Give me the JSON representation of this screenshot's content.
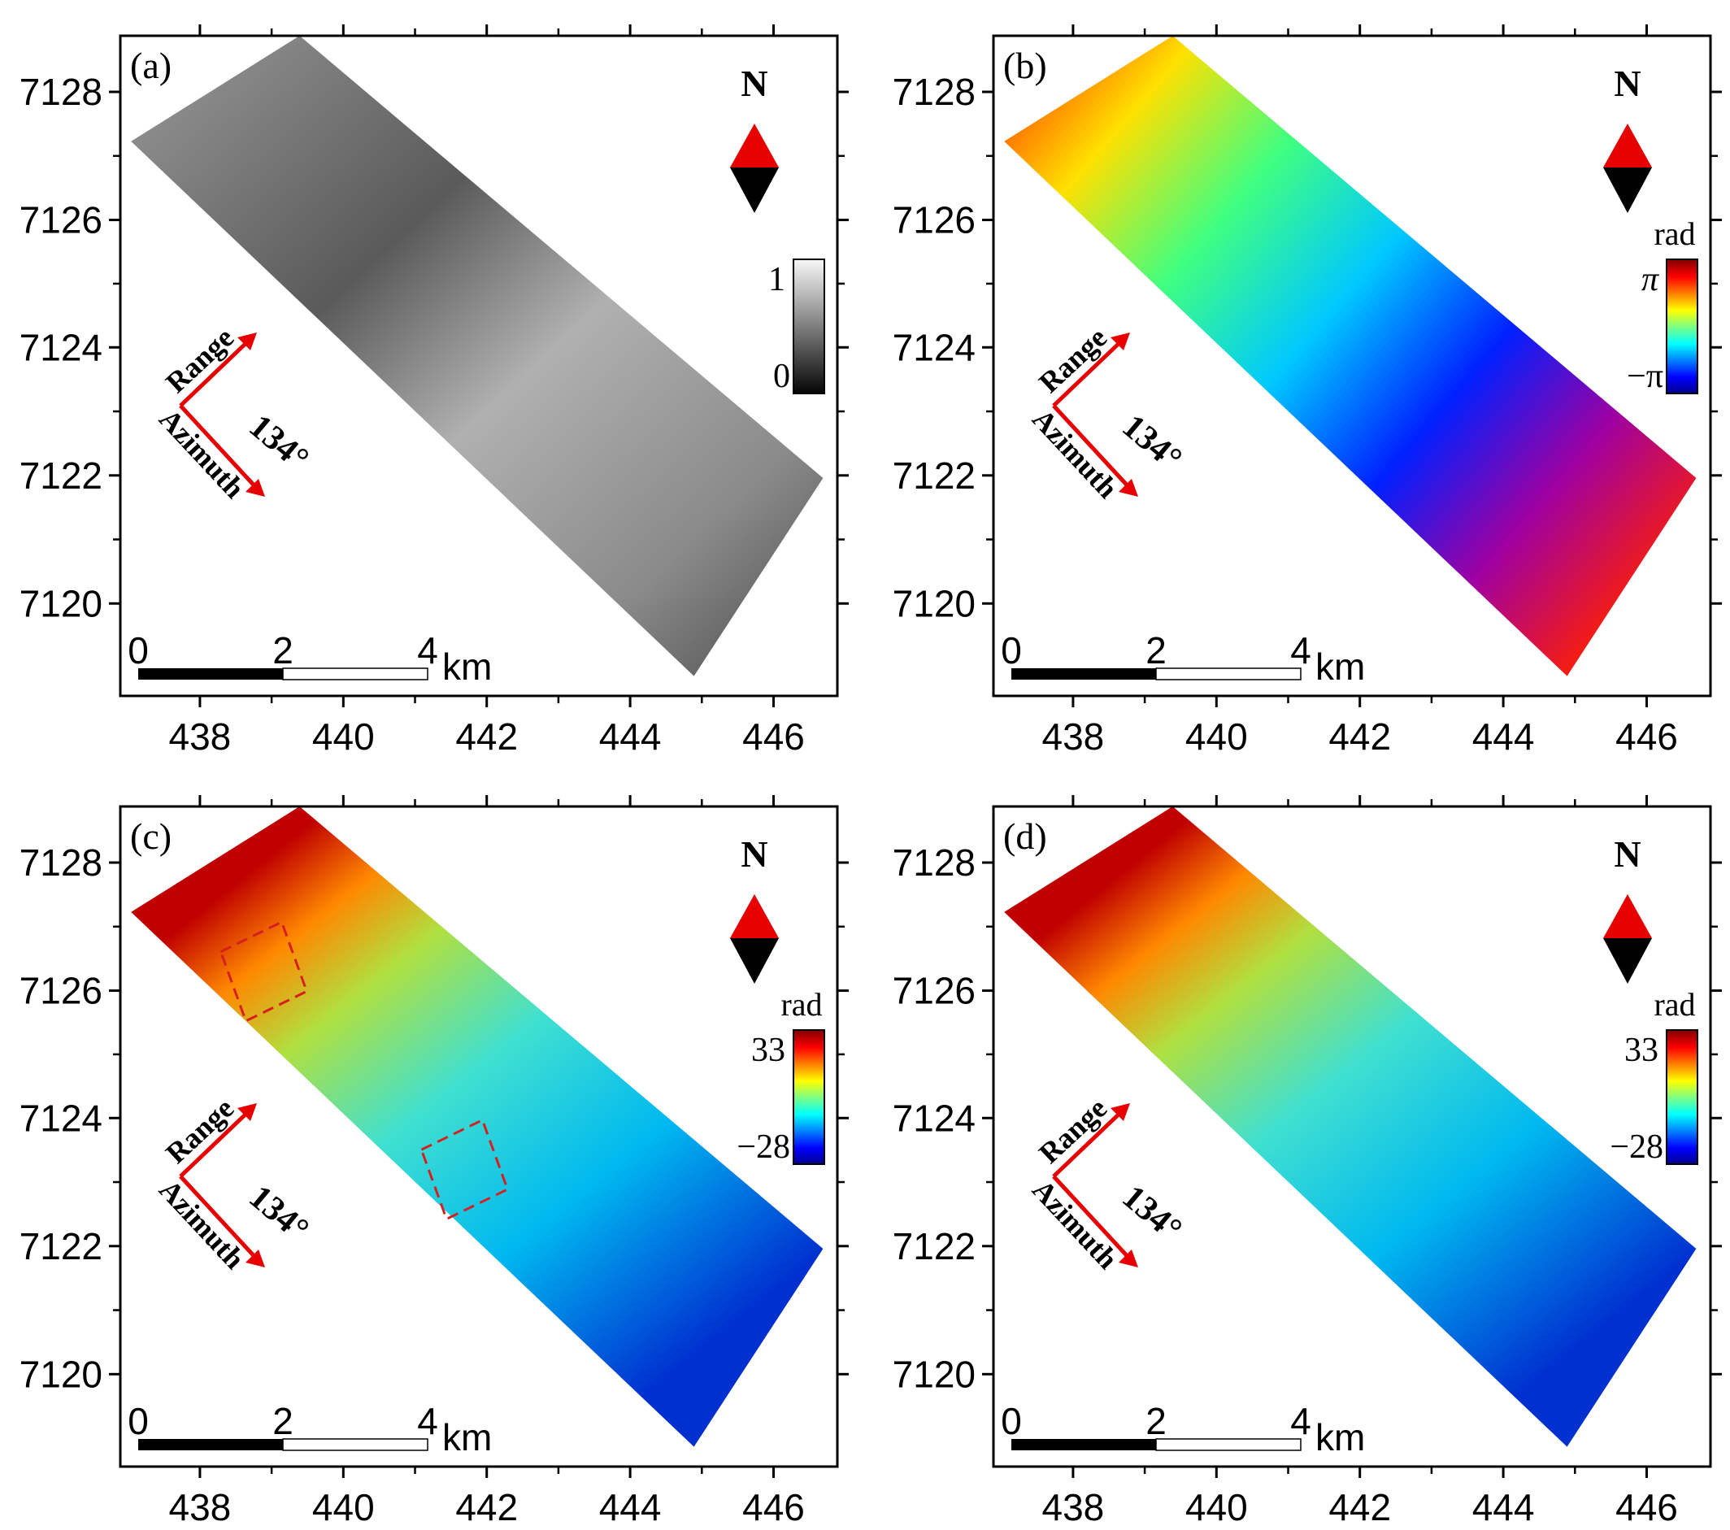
{
  "panels": [
    {
      "id": "a",
      "letter": "(a)",
      "map_type": "coherence",
      "colormap": "gray",
      "colorbar": {
        "unit": "",
        "max_label": "1",
        "min_label": "0"
      },
      "show_boxes": false
    },
    {
      "id": "b",
      "letter": "(b)",
      "map_type": "wrapped-phase",
      "colormap": "jet",
      "colorbar": {
        "unit": "rad",
        "max_label": "π",
        "min_label": "−π"
      },
      "show_boxes": false
    },
    {
      "id": "c",
      "letter": "(c)",
      "map_type": "unwrapped-phase",
      "colormap": "jet",
      "colorbar": {
        "unit": "rad",
        "max_label": "33",
        "min_label": "−28"
      },
      "show_boxes": true
    },
    {
      "id": "d",
      "letter": "(d)",
      "map_type": "unwrapped-phase",
      "colormap": "jet",
      "colorbar": {
        "unit": "rad",
        "max_label": "33",
        "min_label": "−28"
      },
      "show_boxes": false
    }
  ],
  "axes": {
    "x_ticks": [
      "438",
      "440",
      "442",
      "444",
      "446"
    ],
    "y_ticks": [
      "7128",
      "7126",
      "7124",
      "7122",
      "7120"
    ]
  },
  "north_arrow": {
    "label": "N",
    "up_color": "#e60000",
    "down_color": "#000000"
  },
  "geometry": {
    "range_label": "Range",
    "azimuth_label": "Azimuth",
    "heading_label": "134°",
    "arrow_color": "#e60000"
  },
  "scale_bar": {
    "labels": [
      "0",
      "2",
      "4"
    ],
    "unit": "km"
  },
  "box_color": "#d62020"
}
